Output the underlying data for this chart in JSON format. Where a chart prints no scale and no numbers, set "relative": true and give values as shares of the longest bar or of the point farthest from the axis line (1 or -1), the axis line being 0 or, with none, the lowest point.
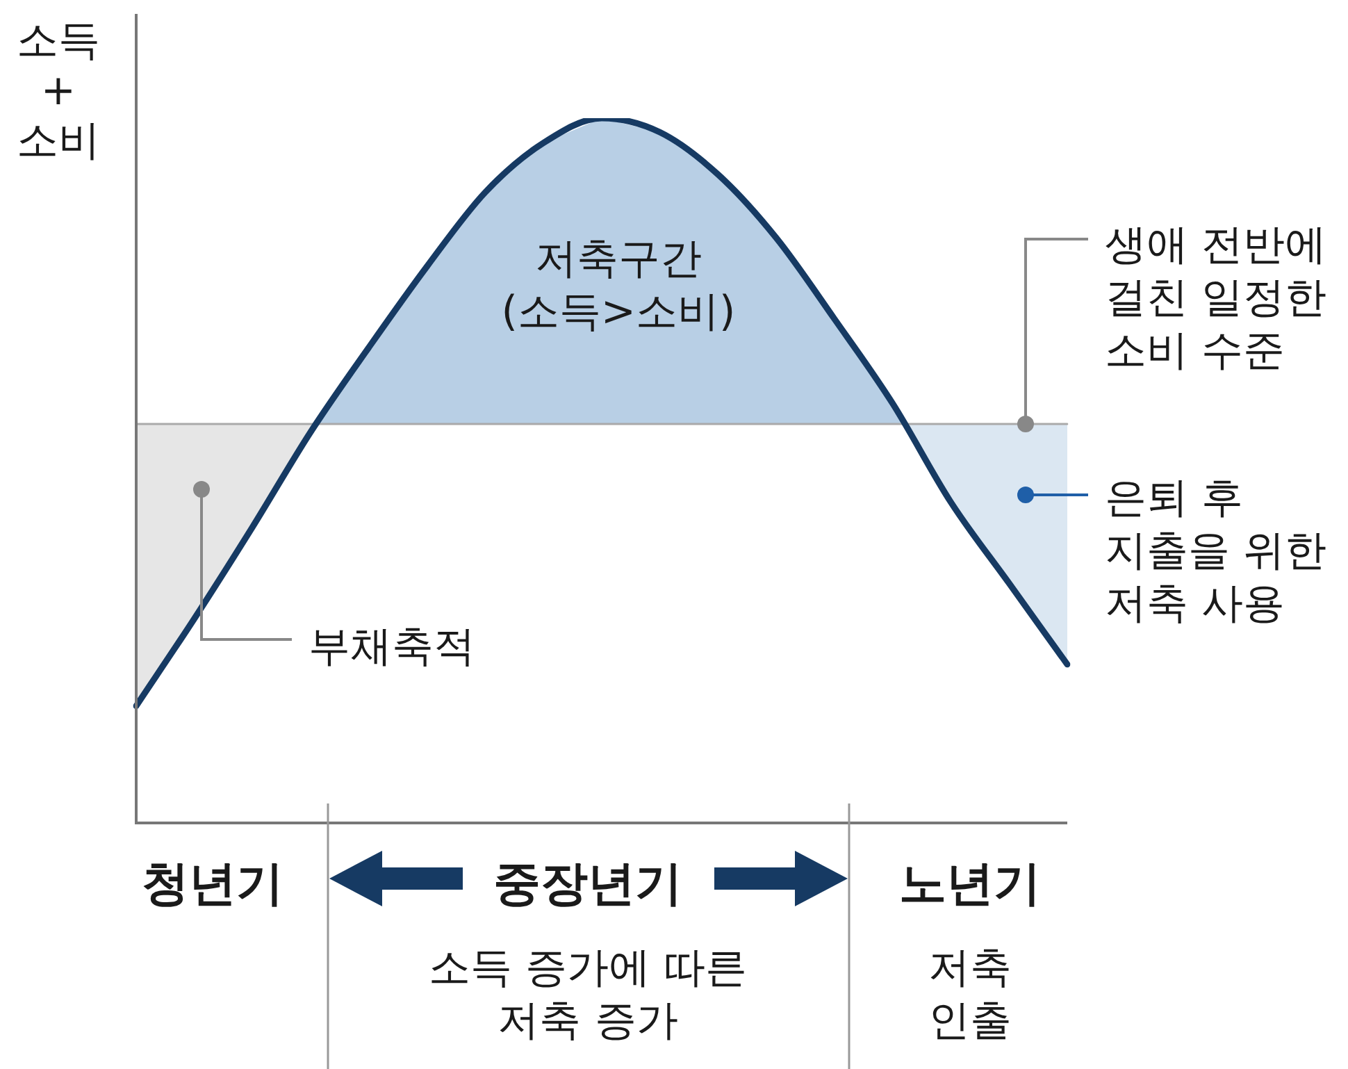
{
  "chart_data": {
    "type": "line",
    "ylabel": "소득\n+\n소비",
    "relative": true,
    "legend": false,
    "marker": "none",
    "line_style": "solid",
    "categories": [
      null,
      null,
      null,
      null,
      null,
      null,
      null,
      null,
      null,
      null,
      null,
      null,
      null,
      null,
      null,
      null,
      null
    ],
    "series": [
      {
        "color": "#163a63",
        "values": [
          0.166,
          0.29,
          0.42,
          0.555,
          0.675,
          0.79,
          0.895,
          0.965,
          1.0,
          0.98,
          0.92,
          0.83,
          0.715,
          0.595,
          0.455,
          0.34,
          0.225
        ]
      },
      {
        "color": "#aaaaaa",
        "values": [
          0.566,
          0.566,
          0.566,
          0.566,
          0.566,
          0.566,
          0.566,
          0.566,
          0.566,
          0.566,
          0.566,
          0.566,
          0.566,
          0.566,
          0.566,
          0.566,
          0.566
        ]
      }
    ],
    "annotations": [
      "저축구간\n(소득>소비)",
      "생애 전반에\n걸친 일정한\n소비 수준",
      "은퇴 후\n지출을 위한\n저축 사용",
      "부채축적",
      "청년기",
      "중장년기",
      "노년기",
      "소득 증가에 따른\n저축 증가",
      "저축\n인출"
    ]
  }
}
